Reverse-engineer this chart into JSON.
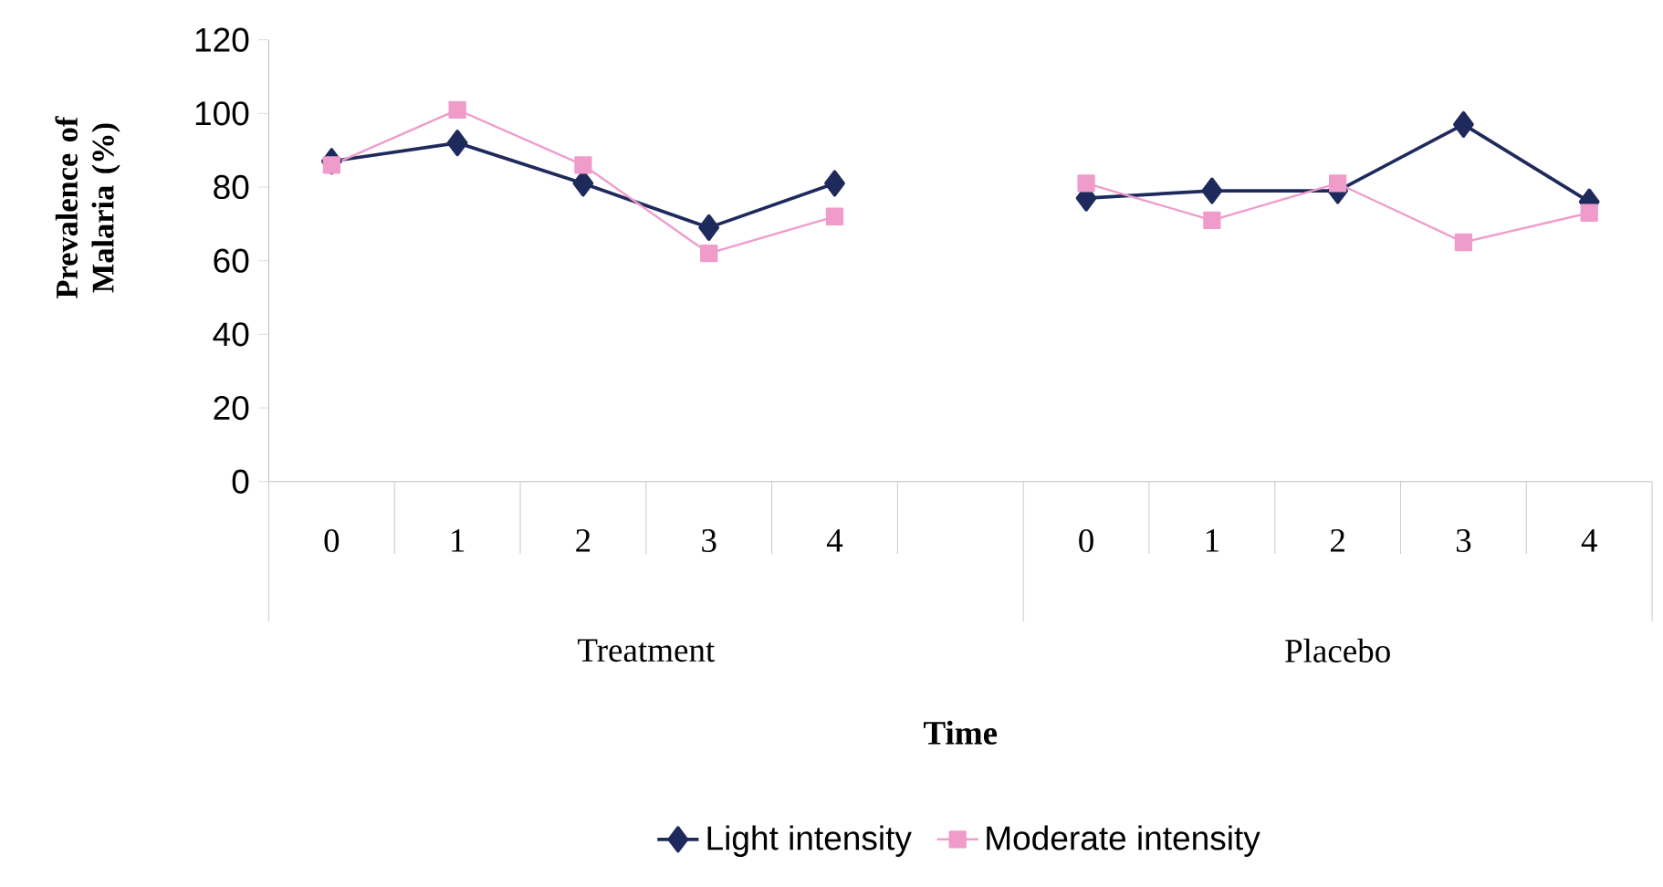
{
  "chart_data": {
    "type": "line",
    "categories": [
      "0",
      "1",
      "2",
      "3",
      "4",
      null,
      "0",
      "1",
      "2",
      "3",
      "4"
    ],
    "series": [
      {
        "name": "Light intensity",
        "color": "#1f2a5c",
        "marker": "diamond",
        "values": [
          87,
          92,
          81,
          69,
          81,
          null,
          77,
          79,
          79,
          97,
          76
        ]
      },
      {
        "name": "Moderate intensity",
        "color": "#f09ccb",
        "marker": "square",
        "values": [
          86,
          101,
          86,
          62,
          72,
          null,
          81,
          71,
          81,
          65,
          73
        ]
      }
    ],
    "xlabel": "Time",
    "ylabel": "Prevalence of Malaria (%)",
    "annotations": [
      "Treatment",
      "Placebo"
    ],
    "ylim": [
      0,
      120
    ],
    "yticks": [
      0,
      20,
      40,
      60,
      80,
      100,
      120
    ],
    "grid": false,
    "legend": "bottom"
  }
}
